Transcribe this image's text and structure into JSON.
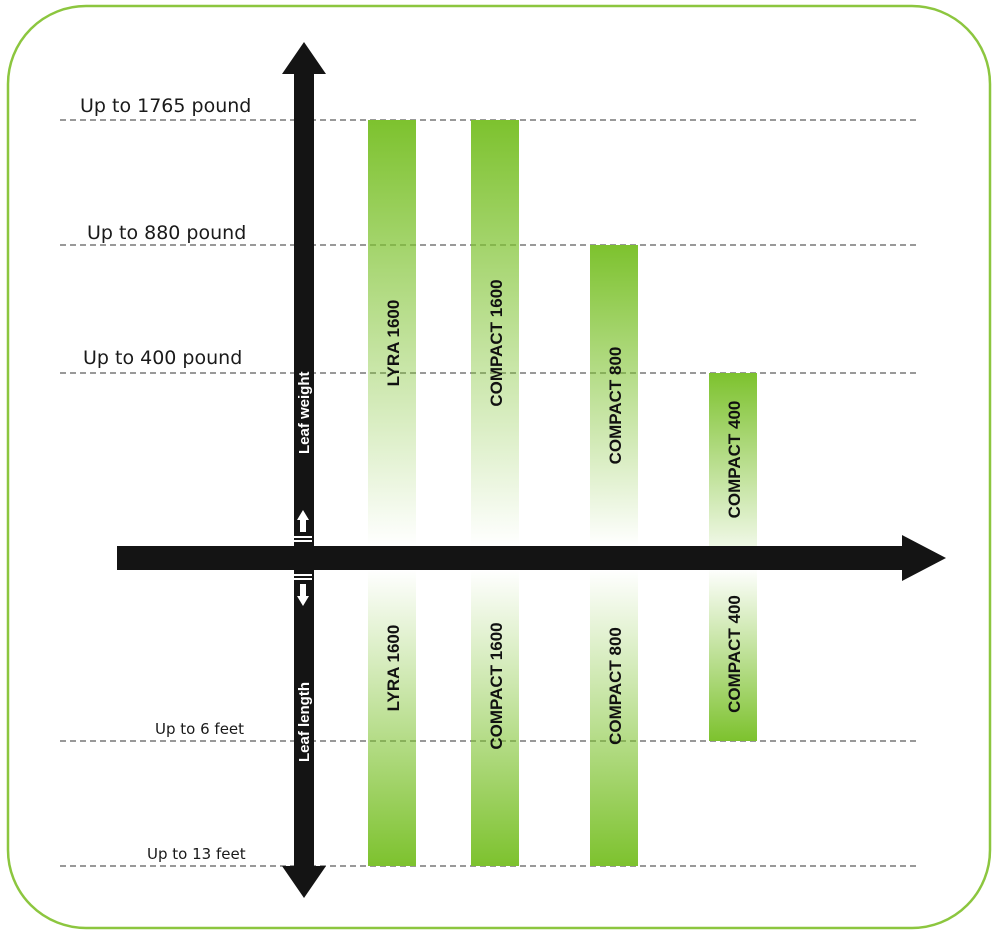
{
  "chart_data": {
    "type": "bar",
    "categories": [
      "LYRA 1600",
      "COMPACT 1600",
      "COMPACT 800",
      "COMPACT 400"
    ],
    "weight_axis": {
      "label": "Leaf weight",
      "levels": [
        {
          "value": 1765,
          "label": "Up to 1765 pound"
        },
        {
          "value": 880,
          "label": "Up to 880 pound"
        },
        {
          "value": 400,
          "label": "Up to 400 pound"
        }
      ],
      "values": [
        1765,
        1765,
        880,
        400
      ]
    },
    "length_axis": {
      "label": "Leaf length",
      "levels": [
        {
          "value": 6,
          "label": "Up to 6 feet"
        },
        {
          "value": 13,
          "label": "Up to 13 feet"
        }
      ],
      "values": [
        13,
        13,
        13,
        6
      ]
    }
  },
  "colors": {
    "bar_green": "#7dc22e",
    "frame_green": "#8cc63f",
    "axis": "#141414",
    "gridline": "#333333"
  }
}
